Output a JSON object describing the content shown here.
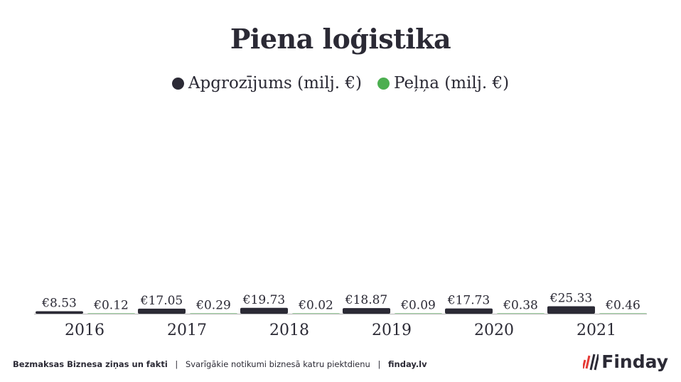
{
  "title": "Piena loģistika",
  "legend": [
    {
      "label": "Apgrozījums (milj. €)",
      "color": "#2b2a35"
    },
    {
      "label": "Peļņa (milj. €)",
      "color": "#4caf50"
    }
  ],
  "chart_data": {
    "type": "bar",
    "categories": [
      "2016",
      "2017",
      "2018",
      "2019",
      "2020",
      "2021"
    ],
    "series": [
      {
        "name": "Apgrozījums (milj. €)",
        "values": [
          8.53,
          17.05,
          19.73,
          18.87,
          17.73,
          25.33
        ],
        "labels": [
          "€8.53",
          "€17.05",
          "€19.73",
          "€18.87",
          "€17.73",
          "€25.33"
        ],
        "color": "#2b2a35"
      },
      {
        "name": "Peļņa (milj. €)",
        "values": [
          0.12,
          0.29,
          0.02,
          0.09,
          0.38,
          0.46
        ],
        "labels": [
          "€0.12",
          "€0.29",
          "€0.02",
          "€0.09",
          "€0.38",
          "€0.46"
        ],
        "color": "#4caf50"
      }
    ],
    "ylim": [
      0,
      700
    ]
  },
  "footer": {
    "part1": "Bezmaksas Biznesa ziņas un fakti",
    "separator": "|",
    "part2": "Svarīgākie notikumi biznesā katru piektdienu",
    "part3": "finday.lv"
  },
  "logo": {
    "text": "Finday"
  }
}
